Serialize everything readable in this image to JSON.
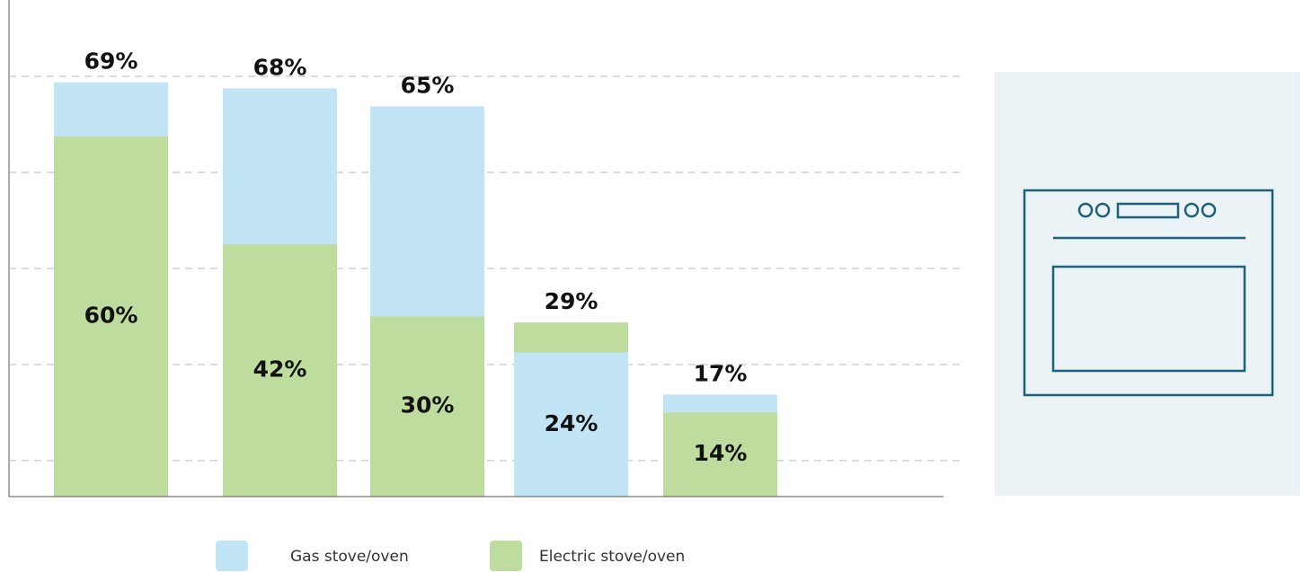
{
  "chart_data": {
    "type": "bar",
    "categories": [
      null,
      null,
      null,
      null,
      null
    ],
    "series": [
      {
        "name": "Gas stove/oven",
        "color": "#c2e5f6",
        "values": [
          69,
          68,
          65,
          24,
          17
        ],
        "value_labels": [
          "69%",
          "68%",
          "65%",
          "24%",
          "17%"
        ]
      },
      {
        "name": "Electric stove/oven",
        "color": "#bfdc9f",
        "values": [
          60,
          42,
          30,
          29,
          14
        ],
        "value_labels": [
          "60%",
          "42%",
          "30%",
          "29%",
          "14%"
        ]
      }
    ],
    "ylim": [
      0,
      70
    ],
    "yticks": [
      6,
      22,
      38,
      54,
      70
    ],
    "grid": true
  }
}
